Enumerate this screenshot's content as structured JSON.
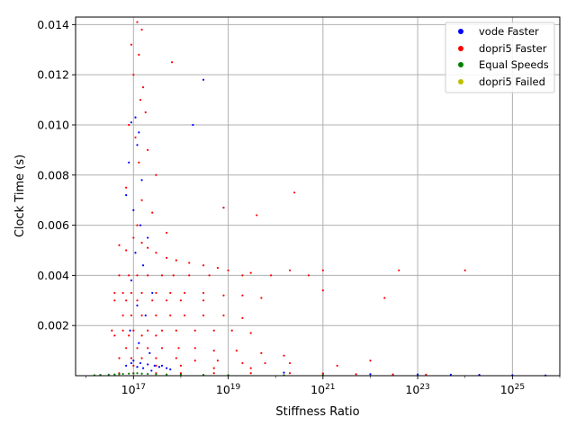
{
  "chart_data": {
    "type": "scatter",
    "xlabel": "Stiffness Ratio",
    "ylabel": "Clock Time (s)",
    "x_scale": "log",
    "xlim": [
      6000000000000000.0,
      1e+26
    ],
    "ylim": [
      0,
      0.0143
    ],
    "grid": true,
    "legend_placement": "top-right",
    "x_ticks": [
      {
        "value": 1e+17,
        "base": "10",
        "exp": "17"
      },
      {
        "value": 1e+19,
        "base": "10",
        "exp": "19"
      },
      {
        "value": 1e+21,
        "base": "10",
        "exp": "21"
      },
      {
        "value": 1e+23,
        "base": "10",
        "exp": "23"
      },
      {
        "value": 1e+25,
        "base": "10",
        "exp": "25"
      }
    ],
    "y_ticks": [
      {
        "value": 0.002,
        "label": "0.002"
      },
      {
        "value": 0.004,
        "label": "0.004"
      },
      {
        "value": 0.006,
        "label": "0.006"
      },
      {
        "value": 0.008,
        "label": "0.008"
      },
      {
        "value": 0.01,
        "label": "0.010"
      },
      {
        "value": 0.012,
        "label": "0.012"
      },
      {
        "value": 0.014,
        "label": "0.014"
      }
    ],
    "series": [
      {
        "name": "vode Faster",
        "color": "#0000ff",
        "points": [
          [
            9e+16,
            0.0101
          ],
          [
            1.1e+17,
            0.0103
          ],
          [
            1.3e+17,
            0.0097
          ],
          [
            1.2e+17,
            0.0092
          ],
          [
            8e+16,
            0.0085
          ],
          [
            1.5e+17,
            0.0078
          ],
          [
            7e+16,
            0.0072
          ],
          [
            1e+17,
            0.0066
          ],
          [
            1.4e+17,
            0.006
          ],
          [
            2e+17,
            0.0055
          ],
          [
            1.1e+17,
            0.0049
          ],
          [
            1.6e+17,
            0.0044
          ],
          [
            9e+16,
            0.0038
          ],
          [
            2.5e+17,
            0.0033
          ],
          [
            1.2e+17,
            0.0028
          ],
          [
            1.8e+17,
            0.0024
          ],
          [
            8.5e+16,
            0.0018
          ],
          [
            1.3e+17,
            0.0013
          ],
          [
            2.2e+17,
            0.0009
          ],
          [
            1e+17,
            0.0006
          ],
          [
            7e+16,
            0.0004
          ],
          [
            1.2e+17,
            0.00035
          ],
          [
            1.6e+17,
            0.0003
          ],
          [
            2e+17,
            0.00045
          ],
          [
            2.8e+17,
            0.0004
          ],
          [
            3.5e+17,
            0.00035
          ],
          [
            5e+17,
            0.0003
          ],
          [
            6e+17,
            0.00025
          ],
          [
            9e+16,
            0.0005
          ],
          [
            1.4e+17,
            0.0005
          ],
          [
            2.4e+17,
            0.0002
          ],
          [
            4e+17,
            0.0004
          ],
          [
            1.5e+20,
            0.00012
          ],
          [
            1e+21,
            8e-05
          ],
          [
            1e+22,
            6e-05
          ],
          [
            1e+23,
            5e-05
          ],
          [
            5e+23,
            4e-05
          ],
          [
            2e+24,
            3e-05
          ],
          [
            1e+25,
            2e-05
          ],
          [
            5e+25,
            1e-05
          ],
          [
            8e+18,
            0.0067
          ],
          [
            3e+18,
            0.0118
          ],
          [
            1.8e+18,
            0.01
          ]
        ]
      },
      {
        "name": "dopri5 Faster",
        "color": "#ff0000",
        "points": [
          [
            1.2e+17,
            0.0141
          ],
          [
            1.5e+17,
            0.0138
          ],
          [
            9e+16,
            0.0132
          ],
          [
            1.3e+17,
            0.0128
          ],
          [
            6.5e+17,
            0.0125
          ],
          [
            1e+17,
            0.012
          ],
          [
            1.6e+17,
            0.0115
          ],
          [
            1.4e+17,
            0.011
          ],
          [
            1.8e+17,
            0.0105
          ],
          [
            8e+16,
            0.01
          ],
          [
            1.1e+17,
            0.0095
          ],
          [
            2e+17,
            0.009
          ],
          [
            1.3e+17,
            0.0085
          ],
          [
            3e+17,
            0.008
          ],
          [
            7e+16,
            0.0075
          ],
          [
            1.5e+17,
            0.007
          ],
          [
            2.5e+17,
            0.0065
          ],
          [
            1.2e+17,
            0.006
          ],
          [
            5e+17,
            0.0057
          ],
          [
            8e+18,
            0.0067
          ],
          [
            2.5e+20,
            0.0073
          ],
          [
            4e+19,
            0.0064
          ],
          [
            5e+16,
            0.0052
          ],
          [
            7e+16,
            0.005
          ],
          [
            1e+17,
            0.0055
          ],
          [
            1.5e+17,
            0.0053
          ],
          [
            2e+17,
            0.0051
          ],
          [
            3e+17,
            0.0049
          ],
          [
            5e+17,
            0.0047
          ],
          [
            8e+17,
            0.0046
          ],
          [
            1.5e+18,
            0.0045
          ],
          [
            3e+18,
            0.0044
          ],
          [
            6e+18,
            0.0043
          ],
          [
            1e+19,
            0.0042
          ],
          [
            3e+19,
            0.0041
          ],
          [
            8e+19,
            0.004
          ],
          [
            2e+20,
            0.0042
          ],
          [
            5e+20,
            0.004
          ],
          [
            1e+21,
            0.0042
          ],
          [
            4e+22,
            0.0042
          ],
          [
            1e+24,
            0.0042
          ],
          [
            5e+16,
            0.004
          ],
          [
            8e+16,
            0.004
          ],
          [
            1.2e+17,
            0.004
          ],
          [
            2e+17,
            0.004
          ],
          [
            4e+17,
            0.004
          ],
          [
            7e+17,
            0.004
          ],
          [
            1.5e+18,
            0.004
          ],
          [
            4e+18,
            0.004
          ],
          [
            2e+19,
            0.004
          ],
          [
            4e+16,
            0.0033
          ],
          [
            6e+16,
            0.0033
          ],
          [
            9e+16,
            0.0033
          ],
          [
            1.5e+17,
            0.0033
          ],
          [
            3e+17,
            0.0033
          ],
          [
            6e+17,
            0.0033
          ],
          [
            1.2e+18,
            0.0033
          ],
          [
            3e+18,
            0.0033
          ],
          [
            8e+18,
            0.0032
          ],
          [
            2e+19,
            0.0032
          ],
          [
            5e+19,
            0.0031
          ],
          [
            1e+21,
            0.0034
          ],
          [
            2e+22,
            0.0031
          ],
          [
            4e+16,
            0.003
          ],
          [
            7e+16,
            0.003
          ],
          [
            1.2e+17,
            0.003
          ],
          [
            2.5e+17,
            0.003
          ],
          [
            5e+17,
            0.003
          ],
          [
            1e+18,
            0.003
          ],
          [
            3e+18,
            0.003
          ],
          [
            6e+16,
            0.0024
          ],
          [
            9e+16,
            0.0024
          ],
          [
            1.5e+17,
            0.0024
          ],
          [
            3e+17,
            0.0024
          ],
          [
            6e+17,
            0.0024
          ],
          [
            1.2e+18,
            0.0024
          ],
          [
            3e+18,
            0.0024
          ],
          [
            8e+18,
            0.0024
          ],
          [
            2e+19,
            0.0023
          ],
          [
            3.5e+16,
            0.0018
          ],
          [
            6e+16,
            0.0018
          ],
          [
            1e+17,
            0.0018
          ],
          [
            2e+17,
            0.0018
          ],
          [
            4e+17,
            0.0018
          ],
          [
            8e+17,
            0.0018
          ],
          [
            2e+18,
            0.0018
          ],
          [
            5e+18,
            0.0018
          ],
          [
            1.2e+19,
            0.0018
          ],
          [
            3e+19,
            0.0017
          ],
          [
            4e+16,
            0.0016
          ],
          [
            8e+16,
            0.0016
          ],
          [
            1.5e+17,
            0.0016
          ],
          [
            3e+17,
            0.0016
          ],
          [
            7e+16,
            0.0011
          ],
          [
            1.2e+17,
            0.0011
          ],
          [
            2e+17,
            0.0011
          ],
          [
            4e+17,
            0.0011
          ],
          [
            9e+17,
            0.0011
          ],
          [
            2e+18,
            0.0011
          ],
          [
            5e+18,
            0.001
          ],
          [
            1.5e+19,
            0.001
          ],
          [
            5e+19,
            0.0009
          ],
          [
            1.5e+20,
            0.0008
          ],
          [
            5e+16,
            0.0007
          ],
          [
            9e+16,
            0.0007
          ],
          [
            1.5e+17,
            0.0007
          ],
          [
            3e+17,
            0.0007
          ],
          [
            8e+17,
            0.0007
          ],
          [
            2e+18,
            0.0006
          ],
          [
            6e+18,
            0.0006
          ],
          [
            2e+19,
            0.0005
          ],
          [
            6e+19,
            0.0005
          ],
          [
            2e+20,
            0.0005
          ],
          [
            1e+17,
            0.0004
          ],
          [
            3e+17,
            0.0004
          ],
          [
            1e+18,
            0.0004
          ],
          [
            5e+18,
            0.0003
          ],
          [
            3e+19,
            0.0003
          ],
          [
            5e+16,
            0.0001
          ],
          [
            1e+17,
            0.0001
          ],
          [
            3e+17,
            0.0001
          ],
          [
            1e+18,
            0.0001
          ],
          [
            5e+18,
            0.0001
          ],
          [
            3e+19,
            0.0001
          ],
          [
            2e+20,
            0.0001
          ],
          [
            1e+21,
            8e-05
          ],
          [
            5e+21,
            6e-05
          ],
          [
            3e+22,
            5e-05
          ],
          [
            1.5e+23,
            4e-05
          ],
          [
            1e+22,
            0.0006
          ],
          [
            2e+21,
            0.0004
          ]
        ]
      },
      {
        "name": "Equal Speeds",
        "color": "#008000",
        "points": [
          [
            1.5e+16,
            2e-05
          ],
          [
            2e+16,
            3e-05
          ],
          [
            3e+16,
            4e-05
          ],
          [
            4e+16,
            5e-05
          ],
          [
            5e+16,
            6e-05
          ],
          [
            6e+16,
            7e-05
          ],
          [
            8e+16,
            8e-05
          ],
          [
            1e+17,
            9e-05
          ],
          [
            1.2e+17,
            0.0001
          ],
          [
            1.5e+17,
            8e-05
          ],
          [
            2e+17,
            7e-05
          ],
          [
            3e+17,
            6e-05
          ],
          [
            5e+17,
            5e-05
          ],
          [
            1e+18,
            4e-05
          ],
          [
            3e+18,
            3e-05
          ],
          [
            1e+19,
            2e-05
          ],
          [
            1.5e+20,
            2e-05
          ],
          [
            1e+21,
            2e-05
          ]
        ]
      },
      {
        "name": "dopri5 Failed",
        "color": "#bfbf00",
        "points": []
      }
    ]
  }
}
